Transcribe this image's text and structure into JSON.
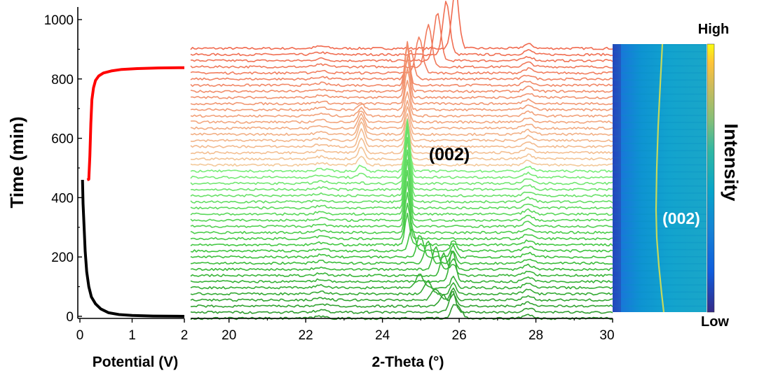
{
  "chart_data": [
    {
      "type": "line",
      "panel": "potential-vs-time",
      "xlabel": "Potential (V)",
      "ylabel": "Time (min)",
      "xlim": [
        0,
        2
      ],
      "ylim": [
        0,
        1050
      ],
      "xticks": [
        "0",
        "1",
        "2"
      ],
      "yticks": [
        "0",
        "200",
        "400",
        "600",
        "800",
        "1000"
      ],
      "grid": false,
      "series": [
        {
          "color": "#000000",
          "x": [
            0.05,
            0.06,
            0.08,
            0.1,
            0.13,
            0.17,
            0.22,
            0.3,
            0.4,
            0.55,
            0.75,
            1.0,
            1.4,
            2.0
          ],
          "y": [
            460,
            380,
            300,
            220,
            150,
            100,
            65,
            42,
            25,
            12,
            6,
            3,
            1,
            0
          ]
        },
        {
          "color": "#ff0000",
          "x": [
            0.14,
            0.17,
            0.19,
            0.21,
            0.23,
            0.26,
            0.3,
            0.36,
            0.45,
            0.6,
            0.8,
            1.1,
            1.5,
            2.0
          ],
          "y": [
            460,
            462,
            540,
            650,
            730,
            770,
            795,
            810,
            820,
            827,
            832,
            835,
            837,
            838
          ]
        }
      ]
    },
    {
      "type": "line",
      "panel": "xrd-waterfall",
      "xlabel": "2-Theta (°)",
      "xlim": [
        19,
        30
      ],
      "xticks": [
        "20",
        "22",
        "24",
        "26",
        "28",
        "30"
      ],
      "annotation": "(002)",
      "grid": false,
      "trace_count": 45,
      "trace_time_range_min": [
        0,
        910
      ],
      "colors": {
        "early": "#2e9a2e",
        "middle": "#4fe04f",
        "late_start": "#f3c99a",
        "late_end": "#f06a4f"
      }
    },
    {
      "type": "heatmap",
      "panel": "intensity-map",
      "colorbar_label": "Intensity",
      "colorbar_high": "High",
      "colorbar_low": "Low",
      "annotation": "(002)",
      "colors": [
        "#352a87",
        "#0f5cdd",
        "#1481d6",
        "#06a4ca",
        "#2eb7a4",
        "#87bf77",
        "#d1bb59",
        "#fec338",
        "#f9fb0e"
      ]
    }
  ]
}
